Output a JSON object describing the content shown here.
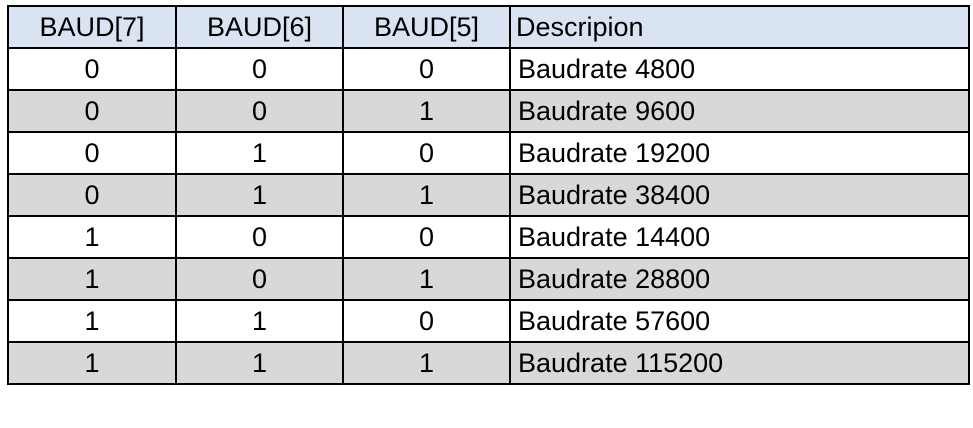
{
  "table": {
    "headers": [
      "BAUD[7]",
      "BAUD[6]",
      "BAUD[5]",
      "Descripion"
    ],
    "rows": [
      [
        "0",
        "0",
        "0",
        "Baudrate 4800"
      ],
      [
        "0",
        "0",
        "1",
        "Baudrate 9600"
      ],
      [
        "0",
        "1",
        "0",
        "Baudrate 19200"
      ],
      [
        "0",
        "1",
        "1",
        "Baudrate 38400"
      ],
      [
        "1",
        "0",
        "0",
        "Baudrate 14400"
      ],
      [
        "1",
        "0",
        "1",
        "Baudrate 28800"
      ],
      [
        "1",
        "1",
        "0",
        "Baudrate 57600"
      ],
      [
        "1",
        "1",
        "1",
        "Baudrate 115200"
      ]
    ],
    "header_color": "#dae3f1",
    "shaded_row_color": "#d8d8d8",
    "border_color": "#000000"
  }
}
